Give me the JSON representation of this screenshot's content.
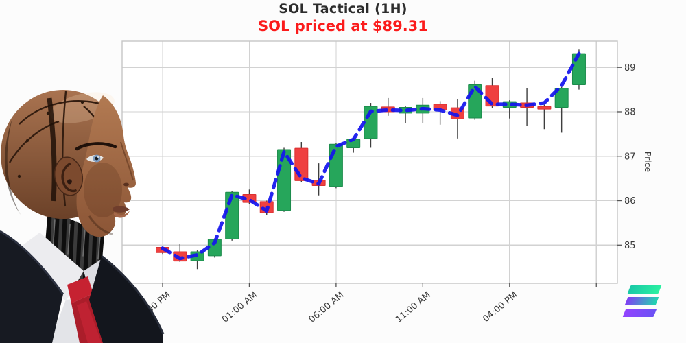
{
  "header": {
    "title": "SOL Tactical (1H)",
    "subtitle": "SOL priced at $89.31"
  },
  "chart_data": {
    "type": "candlestick",
    "title": "SOL Tactical (1H)",
    "symbol": "SOL",
    "interval": "1H",
    "ylabel": "Price",
    "ylim": [
      84.14,
      89.59
    ],
    "y_ticks": [
      85,
      86,
      87,
      88,
      89
    ],
    "x_tick_labels": [
      "08:00 PM",
      "01:00 AM",
      "06:00 AM",
      "11:00 AM",
      "04:00 PM"
    ],
    "x_tick_candle_indices": [
      0,
      5,
      10,
      15,
      20
    ],
    "extra_grid_index": 25,
    "grid": true,
    "candles": [
      {
        "o": 84.95,
        "h": 84.97,
        "l": 84.8,
        "c": 84.83
      },
      {
        "o": 84.85,
        "h": 85.02,
        "l": 84.62,
        "c": 84.64
      },
      {
        "o": 84.65,
        "h": 84.88,
        "l": 84.46,
        "c": 84.85
      },
      {
        "o": 84.76,
        "h": 85.15,
        "l": 84.72,
        "c": 85.13
      },
      {
        "o": 85.14,
        "h": 86.22,
        "l": 85.1,
        "c": 86.19
      },
      {
        "o": 86.14,
        "h": 86.25,
        "l": 85.93,
        "c": 85.96
      },
      {
        "o": 85.98,
        "h": 86.0,
        "l": 85.68,
        "c": 85.73
      },
      {
        "o": 85.78,
        "h": 87.19,
        "l": 85.75,
        "c": 87.15
      },
      {
        "o": 87.18,
        "h": 87.32,
        "l": 86.42,
        "c": 86.45
      },
      {
        "o": 86.46,
        "h": 86.84,
        "l": 86.12,
        "c": 86.34
      },
      {
        "o": 86.32,
        "h": 87.3,
        "l": 86.28,
        "c": 87.27
      },
      {
        "o": 87.19,
        "h": 87.42,
        "l": 87.08,
        "c": 87.38
      },
      {
        "o": 87.4,
        "h": 88.2,
        "l": 87.19,
        "c": 88.12
      },
      {
        "o": 88.11,
        "h": 88.31,
        "l": 87.91,
        "c": 88.0
      },
      {
        "o": 87.97,
        "h": 88.13,
        "l": 87.74,
        "c": 88.1
      },
      {
        "o": 87.97,
        "h": 88.31,
        "l": 87.74,
        "c": 88.15
      },
      {
        "o": 88.17,
        "h": 88.24,
        "l": 87.71,
        "c": 88.04
      },
      {
        "o": 88.09,
        "h": 88.28,
        "l": 87.4,
        "c": 87.84
      },
      {
        "o": 87.86,
        "h": 88.7,
        "l": 87.82,
        "c": 88.61
      },
      {
        "o": 88.59,
        "h": 88.77,
        "l": 88.08,
        "c": 88.13
      },
      {
        "o": 88.1,
        "h": 88.26,
        "l": 87.85,
        "c": 88.23
      },
      {
        "o": 88.2,
        "h": 88.54,
        "l": 87.69,
        "c": 88.1
      },
      {
        "o": 88.12,
        "h": 88.16,
        "l": 87.61,
        "c": 88.06
      },
      {
        "o": 88.1,
        "h": 88.56,
        "l": 87.53,
        "c": 88.53
      },
      {
        "o": 88.61,
        "h": 89.4,
        "l": 88.5,
        "c": 89.31
      }
    ],
    "overlay_line": {
      "name": "trend-line",
      "style": "dashed",
      "values": [
        84.93,
        84.7,
        84.78,
        85.05,
        86.13,
        86.02,
        85.77,
        87.1,
        86.51,
        86.38,
        87.22,
        87.38,
        88.01,
        88.04,
        88.03,
        88.07,
        88.04,
        87.92,
        88.57,
        88.17,
        88.17,
        88.15,
        88.2,
        88.59,
        89.31
      ]
    },
    "colors": {
      "up": "#26a65b",
      "up_edge": "#1c8c4c",
      "down": "#ef4040",
      "down_edge": "#d93131",
      "wick": "#3e3e3e",
      "line": "#1414ee",
      "grid": "#d2d2d2",
      "border": "#c6c6c6",
      "tick_text": "#3a3a3a",
      "plot_bg": "#ffffff"
    },
    "legend": "none"
  },
  "illustrations": {
    "robot": "android-head-in-business-suit"
  },
  "logos": {
    "solana": {
      "bars": 3,
      "gradient_from": "#14f195",
      "gradient_to": "#9945ff"
    }
  }
}
